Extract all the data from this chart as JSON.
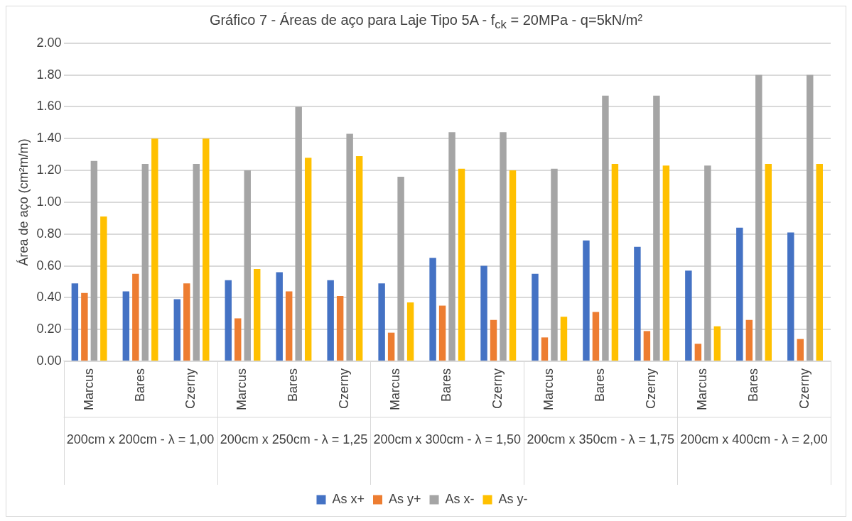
{
  "chart_data": {
    "type": "bar",
    "title": "Gráfico 7 - Áreas de aço para Laje Tipo 5A - f$_{ck}$ = 20MPa - q=5kN/m²",
    "ylabel": "Área de aço (cm²m/m)",
    "categories": [
      "Marcus",
      "Bares",
      "Czerny",
      "Marcus",
      "Bares",
      "Czerny",
      "Marcus",
      "Bares",
      "Czerny",
      "Marcus",
      "Bares",
      "Czerny",
      "Marcus",
      "Bares",
      "Czerny"
    ],
    "annotations": [
      "200cm x 200cm - λ = 1,00",
      "200cm x 250cm - λ = 1,25",
      "200cm x 300cm - λ = 1,50",
      "200cm x 350cm - λ = 1,75",
      "200cm x 400cm - λ = 2,00"
    ],
    "series": [
      {
        "name": "As x+",
        "color": "#4472c4",
        "values": [
          0.49,
          0.44,
          0.39,
          0.51,
          0.56,
          0.51,
          0.49,
          0.65,
          0.6,
          0.55,
          0.76,
          0.72,
          0.57,
          0.84,
          0.81
        ]
      },
      {
        "name": "As y+",
        "color": "#ed7d31",
        "values": [
          0.43,
          0.55,
          0.49,
          0.27,
          0.44,
          0.41,
          0.18,
          0.35,
          0.26,
          0.15,
          0.31,
          0.19,
          0.11,
          0.26,
          0.14
        ]
      },
      {
        "name": "As x-",
        "color": "#a5a5a5",
        "values": [
          1.26,
          1.24,
          1.24,
          1.2,
          1.6,
          1.43,
          1.16,
          1.44,
          1.44,
          1.21,
          1.67,
          1.67,
          1.23,
          1.8,
          1.8
        ]
      },
      {
        "name": "As y-",
        "color": "#ffc000",
        "values": [
          0.91,
          1.4,
          1.4,
          0.58,
          1.28,
          1.29,
          0.37,
          1.21,
          1.2,
          0.28,
          1.24,
          1.23,
          0.22,
          1.24,
          1.24
        ]
      }
    ],
    "ylim": [
      0,
      2
    ],
    "yticks": [
      {
        "value": 0,
        "label": "0.00"
      },
      {
        "value": 0.2,
        "label": "0.20"
      },
      {
        "value": 0.4,
        "label": "0.40"
      },
      {
        "value": 0.6,
        "label": "0.60"
      },
      {
        "value": 0.8,
        "label": "0.80"
      },
      {
        "value": 1,
        "label": "1.00"
      },
      {
        "value": 1.2,
        "label": "1.20"
      },
      {
        "value": 1.4,
        "label": "1.40"
      },
      {
        "value": 1.6,
        "label": "1.60"
      },
      {
        "value": 1.8,
        "label": "1.80"
      },
      {
        "value": 2,
        "label": "2.00"
      }
    ],
    "grid": "y",
    "legend": "bottom"
  }
}
